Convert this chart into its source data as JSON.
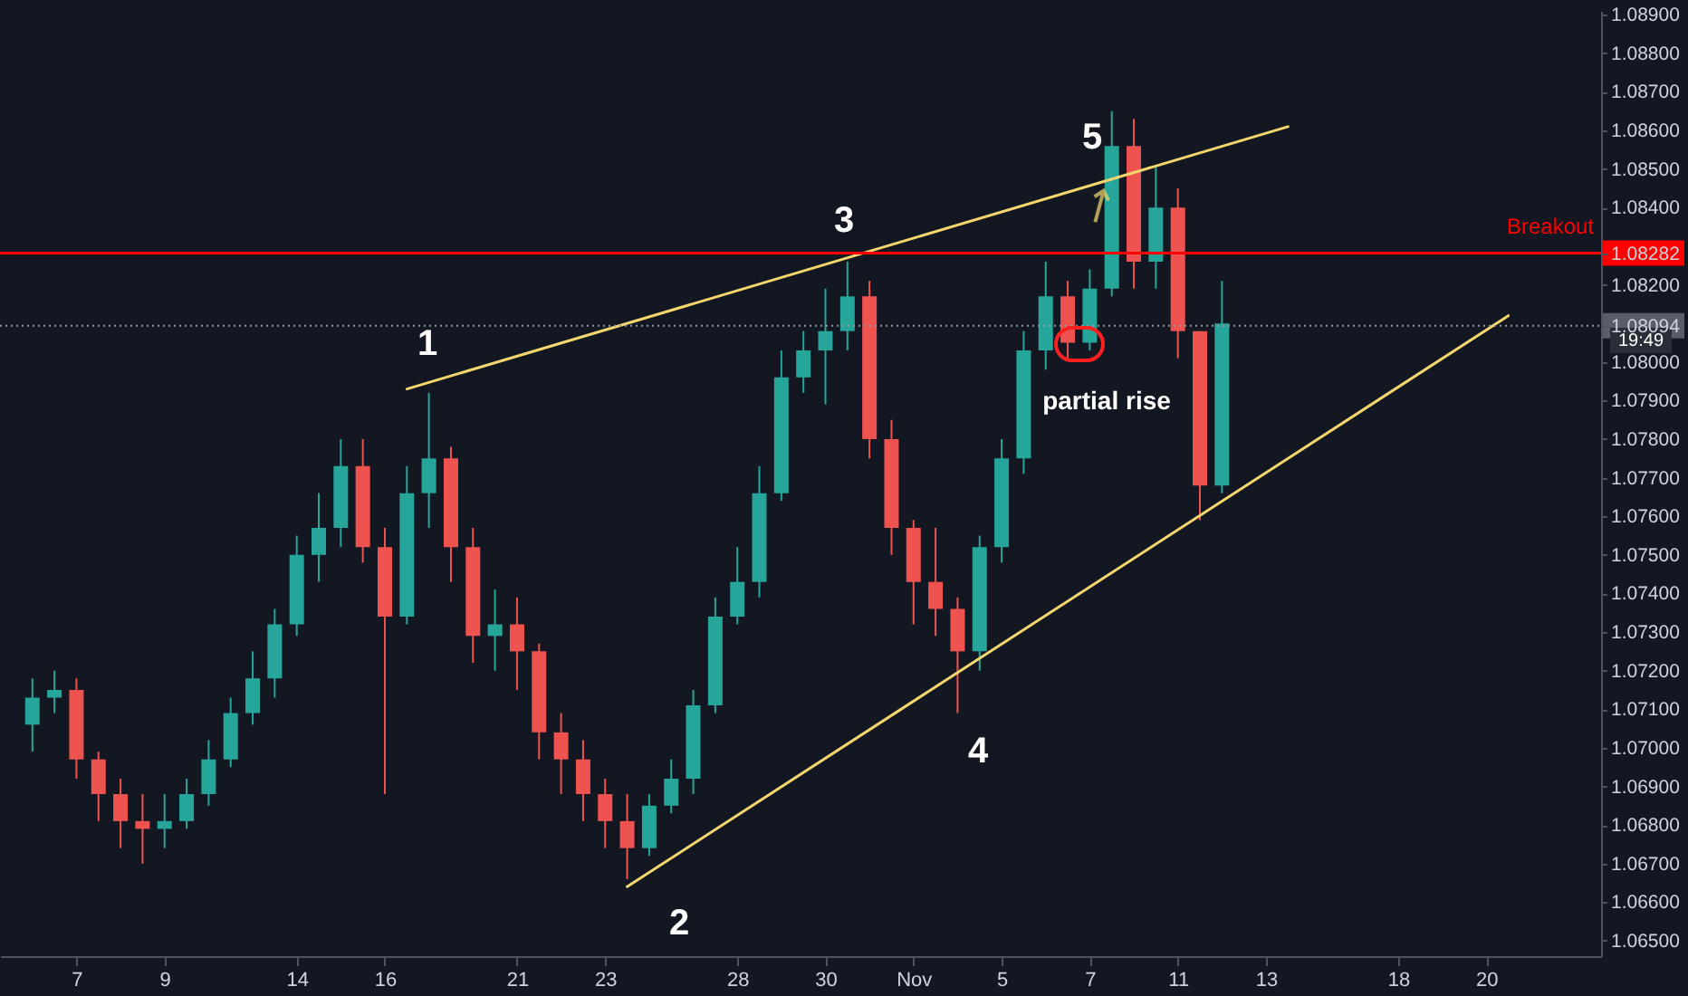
{
  "chart_data": {
    "type": "candlestick",
    "categories": [
      null,
      null,
      "7",
      null,
      null,
      null,
      "9",
      null,
      null,
      null,
      null,
      null,
      "14",
      null,
      null,
      null,
      "16",
      null,
      null,
      null,
      null,
      null,
      "21",
      null,
      null,
      null,
      "23",
      null,
      null,
      null,
      null,
      null,
      "28",
      null,
      null,
      null,
      "30",
      null,
      null,
      null,
      "Nov",
      null,
      null,
      null,
      "5",
      null,
      null,
      null,
      "7",
      null,
      null,
      null,
      "11",
      null,
      null,
      null,
      "13",
      null,
      null,
      null,
      null,
      null,
      "18",
      null,
      null,
      null,
      "20",
      null,
      null,
      null,
      null
    ],
    "ohlc": [
      [
        1.0706,
        1.0718,
        1.0699,
        1.0713
      ],
      [
        1.0713,
        1.072,
        1.0709,
        1.0715
      ],
      [
        1.0715,
        1.0718,
        1.0692,
        1.0697
      ],
      [
        1.0697,
        1.0699,
        1.0681,
        1.0688
      ],
      [
        1.0688,
        1.0692,
        1.0674,
        1.0681
      ],
      [
        1.0681,
        1.0688,
        1.067,
        1.0679
      ],
      [
        1.0679,
        1.0688,
        1.0674,
        1.0681
      ],
      [
        1.0681,
        1.0692,
        1.0679,
        1.0688
      ],
      [
        1.0688,
        1.0702,
        1.0685,
        1.0697
      ],
      [
        1.0697,
        1.0713,
        1.0695,
        1.0709
      ],
      [
        1.0709,
        1.0725,
        1.0706,
        1.0718
      ],
      [
        1.0718,
        1.0736,
        1.0713,
        1.0732
      ],
      [
        1.0732,
        1.0755,
        1.0729,
        1.075
      ],
      [
        1.075,
        1.0766,
        1.0743,
        1.0757
      ],
      [
        1.0757,
        1.078,
        1.0752,
        1.0773
      ],
      [
        1.0773,
        1.078,
        1.0748,
        1.0752
      ],
      [
        1.0752,
        1.0757,
        1.0688,
        1.0734
      ],
      [
        1.0734,
        1.0773,
        1.0732,
        1.0766
      ],
      [
        1.0766,
        1.0792,
        1.0757,
        1.0775
      ],
      [
        1.0775,
        1.0778,
        1.0743,
        1.0752
      ],
      [
        1.0752,
        1.0757,
        1.0722,
        1.0729
      ],
      [
        1.0729,
        1.0741,
        1.072,
        1.0732
      ],
      [
        1.0732,
        1.0739,
        1.0715,
        1.0725
      ],
      [
        1.0725,
        1.0727,
        1.0697,
        1.0704
      ],
      [
        1.0704,
        1.0709,
        1.0688,
        1.0697
      ],
      [
        1.0697,
        1.0702,
        1.0681,
        1.0688
      ],
      [
        1.0688,
        1.0692,
        1.0674,
        1.0681
      ],
      [
        1.0681,
        1.0688,
        1.0666,
        1.0674
      ],
      [
        1.0674,
        1.0688,
        1.0672,
        1.0685
      ],
      [
        1.0685,
        1.0697,
        1.0683,
        1.0692
      ],
      [
        1.0692,
        1.0715,
        1.0688,
        1.0711
      ],
      [
        1.0711,
        1.0739,
        1.0709,
        1.0734
      ],
      [
        1.0734,
        1.0752,
        1.0732,
        1.0743
      ],
      [
        1.0743,
        1.0773,
        1.0739,
        1.0766
      ],
      [
        1.0766,
        1.0803,
        1.0764,
        1.0796
      ],
      [
        1.0796,
        1.0808,
        1.0792,
        1.0803
      ],
      [
        1.0803,
        1.0819,
        1.0789,
        1.0808
      ],
      [
        1.0808,
        1.0826,
        1.0803,
        1.0817
      ],
      [
        1.0817,
        1.0821,
        1.0775,
        1.078
      ],
      [
        1.078,
        1.0785,
        1.075,
        1.0757
      ],
      [
        1.0757,
        1.0759,
        1.0732,
        1.0743
      ],
      [
        1.0743,
        1.0757,
        1.0729,
        1.0736
      ],
      [
        1.0736,
        1.0739,
        1.0709,
        1.0725
      ],
      [
        1.0725,
        1.0755,
        1.072,
        1.0752
      ],
      [
        1.0752,
        1.078,
        1.0748,
        1.0775
      ],
      [
        1.0775,
        1.0808,
        1.0771,
        1.0803
      ],
      [
        1.0803,
        1.0826,
        1.0798,
        1.0817
      ],
      [
        1.0817,
        1.0821,
        1.0801,
        1.0805
      ],
      [
        1.0805,
        1.0824,
        1.0803,
        1.0819
      ],
      [
        1.0819,
        1.0865,
        1.0817,
        1.0856
      ],
      [
        1.0856,
        1.0863,
        1.0819,
        1.0826
      ],
      [
        1.0826,
        1.0851,
        1.0819,
        1.084
      ],
      [
        1.084,
        1.0845,
        1.0801,
        1.0808
      ],
      [
        1.0808,
        1.0808,
        1.0759,
        1.0768
      ],
      [
        1.0768,
        1.0821,
        1.0766,
        1.081
      ],
      null,
      null,
      null,
      null,
      null,
      null,
      null,
      null,
      null,
      null,
      null,
      null,
      null,
      null,
      null,
      null
    ],
    "colors": [
      "#26a69a",
      "#26a69a",
      "#ef5350",
      "#ef5350",
      "#ef5350",
      "#ef5350",
      "#26a69a",
      "#26a69a",
      "#26a69a",
      "#26a69a",
      "#26a69a",
      "#26a69a",
      "#26a69a",
      "#26a69a",
      "#26a69a",
      "#ef5350",
      "#ef5350",
      "#26a69a",
      "#26a69a",
      "#ef5350",
      "#ef5350",
      "#26a69a",
      "#ef5350",
      "#ef5350",
      "#ef5350",
      "#ef5350",
      "#ef5350",
      "#ef5350",
      "#26a69a",
      "#26a69a",
      "#26a69a",
      "#26a69a",
      "#26a69a",
      "#26a69a",
      "#26a69a",
      "#26a69a",
      "#26a69a",
      "#26a69a",
      "#ef5350",
      "#ef5350",
      "#ef5350",
      "#ef5350",
      "#ef5350",
      "#26a69a",
      "#26a69a",
      "#26a69a",
      "#26a69a",
      "#ef5350",
      "#26a69a",
      "#26a69a",
      "#ef5350",
      "#26a69a",
      "#ef5350",
      "#ef5350",
      "#26a69a",
      null,
      null,
      null,
      null,
      null,
      null,
      null,
      null,
      null,
      null,
      null,
      null,
      null,
      null,
      null,
      null
    ],
    "series": [
      {
        "type": "line",
        "color": "#f5d76e",
        "values": [
          null,
          null,
          null,
          null,
          null,
          null,
          null,
          null,
          null,
          null,
          null,
          null,
          null,
          null,
          null,
          null,
          null,
          1.0793,
          null,
          null,
          null,
          null,
          null,
          null,
          null,
          null,
          null,
          null,
          null,
          null,
          null,
          null,
          null,
          null,
          null,
          null,
          null,
          null,
          null,
          null,
          null,
          null,
          null,
          null,
          null,
          null,
          null,
          null,
          null,
          null,
          null,
          null,
          null,
          null,
          null,
          null,
          null,
          1.0861,
          null,
          null,
          null,
          null,
          null,
          null,
          null,
          null,
          null,
          null,
          null,
          null,
          null
        ]
      },
      {
        "type": "line",
        "color": "#f5d76e",
        "values": [
          null,
          null,
          null,
          null,
          null,
          null,
          null,
          null,
          null,
          null,
          null,
          null,
          null,
          null,
          null,
          null,
          null,
          null,
          null,
          null,
          null,
          null,
          null,
          null,
          null,
          null,
          null,
          1.0664,
          null,
          null,
          null,
          null,
          null,
          null,
          null,
          null,
          null,
          null,
          null,
          null,
          null,
          null,
          null,
          null,
          null,
          null,
          null,
          null,
          null,
          null,
          null,
          null,
          null,
          null,
          null,
          null,
          null,
          null,
          null,
          null,
          null,
          null,
          null,
          null,
          null,
          null,
          null,
          1.0812,
          null,
          null,
          null
        ]
      }
    ],
    "ylim": [
      1.0646,
      1.0891
    ],
    "yticks": [
      {
        "value": 1.065,
        "label": "1.06500"
      },
      {
        "value": 1.066,
        "label": "1.06600"
      },
      {
        "value": 1.067,
        "label": "1.06700"
      },
      {
        "value": 1.068,
        "label": "1.06800"
      },
      {
        "value": 1.069,
        "label": "1.06900"
      },
      {
        "value": 1.07,
        "label": "1.07000"
      },
      {
        "value": 1.071,
        "label": "1.07100"
      },
      {
        "value": 1.072,
        "label": "1.07200"
      },
      {
        "value": 1.073,
        "label": "1.07300"
      },
      {
        "value": 1.074,
        "label": "1.07400"
      },
      {
        "value": 1.075,
        "label": "1.07500"
      },
      {
        "value": 1.076,
        "label": "1.07600"
      },
      {
        "value": 1.077,
        "label": "1.07700"
      },
      {
        "value": 1.078,
        "label": "1.07800"
      },
      {
        "value": 1.079,
        "label": "1.07900"
      },
      {
        "value": 1.08,
        "label": "1.08000"
      },
      {
        "value": 1.08094,
        "label": "1.08094"
      },
      {
        "value": 1.082,
        "label": "1.08200"
      },
      {
        "value": 1.08282,
        "label": "1.08282"
      },
      {
        "value": 1.084,
        "label": "1.08400"
      },
      {
        "value": 1.085,
        "label": "1.08500"
      },
      {
        "value": 1.086,
        "label": "1.08600"
      },
      {
        "value": 1.087,
        "label": "1.08700"
      },
      {
        "value": 1.088,
        "label": "1.08800"
      },
      {
        "value": 1.089,
        "label": "1.08900"
      }
    ],
    "ref_lines": [
      {
        "axis": "y",
        "value": 1.08282,
        "label": "Breakout",
        "color": "#ff0000",
        "line_style": "solid"
      },
      {
        "axis": "y",
        "value": 1.08094,
        "label": null,
        "color": "#9598a1",
        "line_style": "dotted"
      }
    ],
    "annotations": [
      "1",
      "2",
      "3",
      "4",
      "5",
      "partial rise",
      "19:49"
    ]
  }
}
